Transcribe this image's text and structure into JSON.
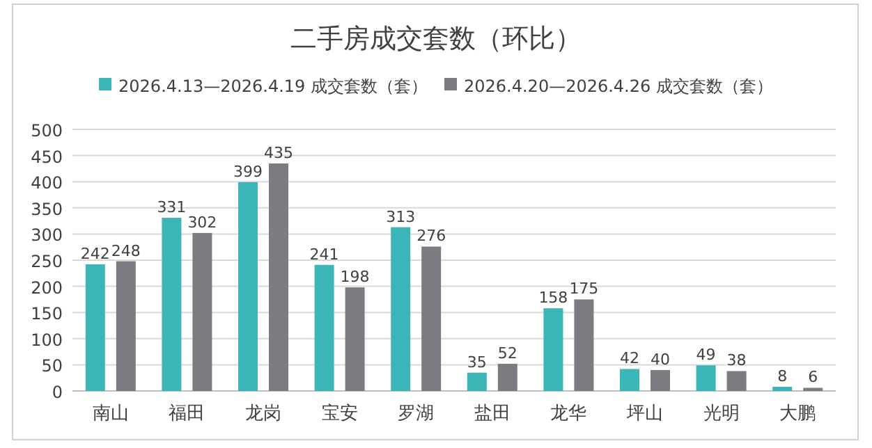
{
  "chart_data": {
    "type": "bar",
    "title": "二手房成交套数（环比）",
    "categories": [
      "南山",
      "福田",
      "龙岗",
      "宝安",
      "罗湖",
      "盐田",
      "龙华",
      "坪山",
      "光明",
      "大鹏"
    ],
    "series": [
      {
        "name": "2026.4.13—2026.4.19 成交套数（套）",
        "color": "#3bb5b8",
        "values": [
          242,
          331,
          399,
          241,
          313,
          35,
          158,
          42,
          49,
          8
        ]
      },
      {
        "name": "2026.4.20—2026.4.26 成交套数（套）",
        "color": "#7a7c82",
        "values": [
          248,
          302,
          435,
          198,
          276,
          52,
          175,
          40,
          38,
          6
        ]
      }
    ],
    "ylim": [
      0,
      500
    ],
    "yticks": [
      0,
      50,
      100,
      150,
      200,
      250,
      300,
      350,
      400,
      450,
      500
    ],
    "grid": "y",
    "legend": "top",
    "data_labels": true
  }
}
